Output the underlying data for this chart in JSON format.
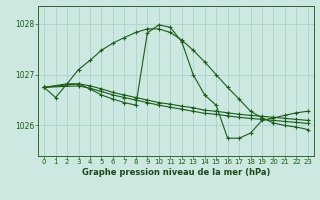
{
  "title": "Graphe pression niveau de la mer (hPa)",
  "background_color": "#cce8e0",
  "grid_color": "#aad4cc",
  "line_color": "#1a5c1a",
  "xlim": [
    -0.5,
    23.5
  ],
  "ylim": [
    1025.4,
    1028.35
  ],
  "yticks": [
    1026,
    1027,
    1028
  ],
  "xticks": [
    0,
    1,
    2,
    3,
    4,
    5,
    6,
    7,
    8,
    9,
    10,
    11,
    12,
    13,
    14,
    15,
    16,
    17,
    18,
    19,
    20,
    21,
    22,
    23
  ],
  "series": [
    {
      "x": [
        0,
        1,
        2,
        3,
        4,
        5,
        6,
        7,
        8,
        9,
        10,
        11,
        12,
        13,
        14,
        15,
        16,
        17,
        18,
        19,
        20,
        21,
        22,
        23
      ],
      "y": [
        1026.75,
        1026.55,
        1026.82,
        1026.82,
        1026.72,
        1026.6,
        1026.52,
        1026.45,
        1026.4,
        1027.82,
        1027.98,
        1027.93,
        1027.65,
        1027.0,
        1026.6,
        1026.4,
        1025.75,
        1025.75,
        1025.85,
        1026.1,
        1026.15,
        1026.2,
        1026.25,
        1026.28
      ]
    },
    {
      "x": [
        0,
        3,
        4,
        5,
        6,
        7,
        8,
        9,
        10,
        11,
        12,
        13,
        14,
        15,
        16,
        17,
        18,
        19,
        20,
        21,
        22,
        23
      ],
      "y": [
        1026.75,
        1026.82,
        1026.78,
        1026.72,
        1026.65,
        1026.6,
        1026.55,
        1026.5,
        1026.45,
        1026.42,
        1026.38,
        1026.35,
        1026.3,
        1026.28,
        1026.25,
        1026.22,
        1026.2,
        1026.18,
        1026.16,
        1026.14,
        1026.12,
        1026.1
      ]
    },
    {
      "x": [
        0,
        3,
        4,
        5,
        6,
        7,
        8,
        9,
        10,
        11,
        12,
        13,
        14,
        15,
        16,
        17,
        18,
        19,
        20,
        21,
        22,
        23
      ],
      "y": [
        1026.75,
        1026.78,
        1026.73,
        1026.67,
        1026.6,
        1026.55,
        1026.5,
        1026.45,
        1026.4,
        1026.36,
        1026.32,
        1026.28,
        1026.24,
        1026.22,
        1026.19,
        1026.16,
        1026.14,
        1026.12,
        1026.1,
        1026.08,
        1026.06,
        1026.04
      ]
    },
    {
      "x": [
        0,
        2,
        3,
        4,
        5,
        6,
        7,
        8,
        9,
        10,
        11,
        12,
        13,
        14,
        15,
        16,
        17,
        18,
        19,
        20,
        21,
        22,
        23
      ],
      "y": [
        1026.75,
        1026.82,
        1027.1,
        1027.28,
        1027.48,
        1027.62,
        1027.73,
        1027.83,
        1027.9,
        1027.9,
        1027.83,
        1027.68,
        1027.48,
        1027.25,
        1027.0,
        1026.75,
        1026.52,
        1026.28,
        1026.15,
        1026.05,
        1026.0,
        1025.97,
        1025.92
      ]
    }
  ]
}
